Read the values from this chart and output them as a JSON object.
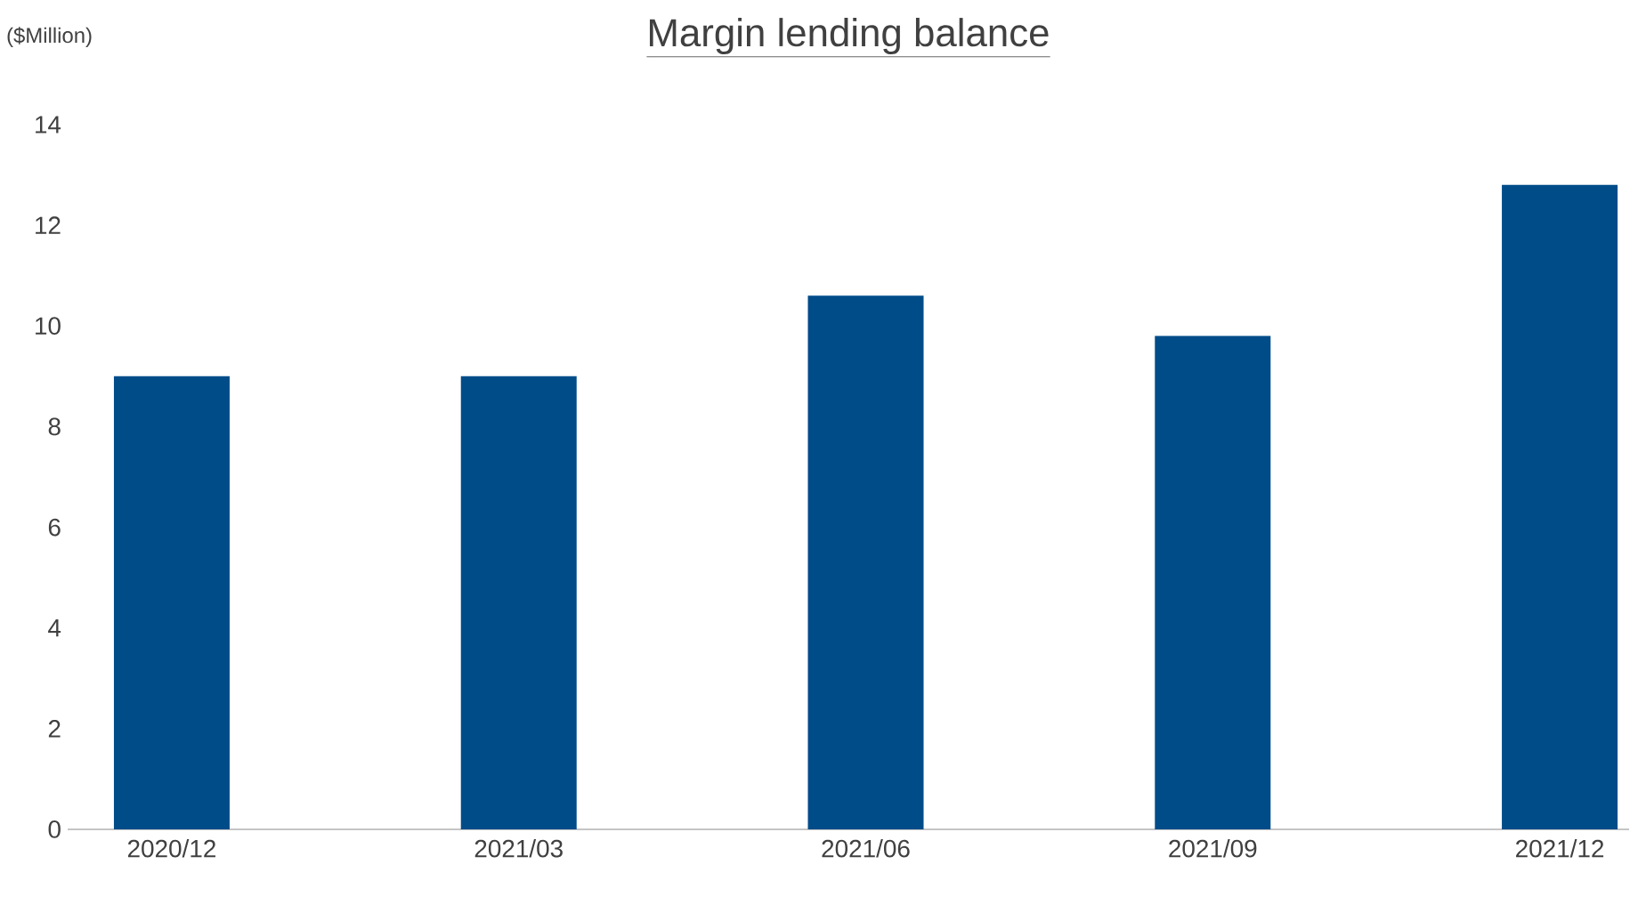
{
  "chart_data": {
    "type": "bar",
    "title": "Margin lending balance",
    "ylabel": "($Million)",
    "categories": [
      "2020/12",
      "2021/03",
      "2021/06",
      "2021/09",
      "2021/12"
    ],
    "values": [
      9.0,
      9.0,
      10.6,
      9.8,
      12.8
    ],
    "color": "#004c89",
    "ylim": [
      0,
      14
    ],
    "yticks": [
      0,
      2,
      4,
      6,
      8,
      10,
      12,
      14
    ]
  }
}
